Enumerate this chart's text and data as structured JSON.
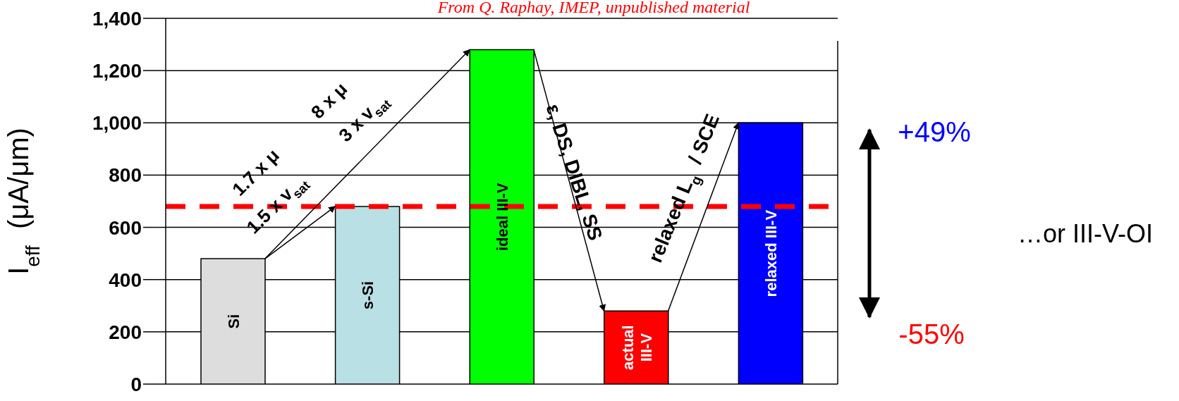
{
  "chart_data": {
    "type": "bar",
    "ylabel": "I$_{eff}$ (μA/μm)",
    "categories": [
      "Si",
      "s-Si",
      "ideal III-V",
      "actual III-V",
      "relaxed III-V"
    ],
    "values": [
      480,
      680,
      1280,
      280,
      1000
    ],
    "colors": [
      "#dddddd",
      "#b9e0e4",
      "#00ff00",
      "#ff0000",
      "#0000ff"
    ],
    "ylim": [
      0,
      1400
    ],
    "yticks": [
      0,
      200,
      400,
      600,
      800,
      {
        "value": 1000,
        "label": "1,000"
      },
      {
        "value": 1200,
        "label": "1,200"
      },
      {
        "value": 1400,
        "label": "1,400"
      }
    ],
    "grid": "y",
    "ref_lines": [
      {
        "axis": "y",
        "value": 680,
        "color": "#ff0000",
        "line_style": "dashed"
      }
    ],
    "annotations": [
      "1.7 x μ",
      "1.5 x v$_{sat}$",
      "8 x μ",
      "3 x v$_{sat}$",
      "ε, DS, DIBL, SS",
      "relaxed L$_{g}$ / SCE",
      "+49%",
      "-55%",
      "…or III-V-OI",
      "From Q. Raphay, IMEP, unpublished material"
    ]
  }
}
